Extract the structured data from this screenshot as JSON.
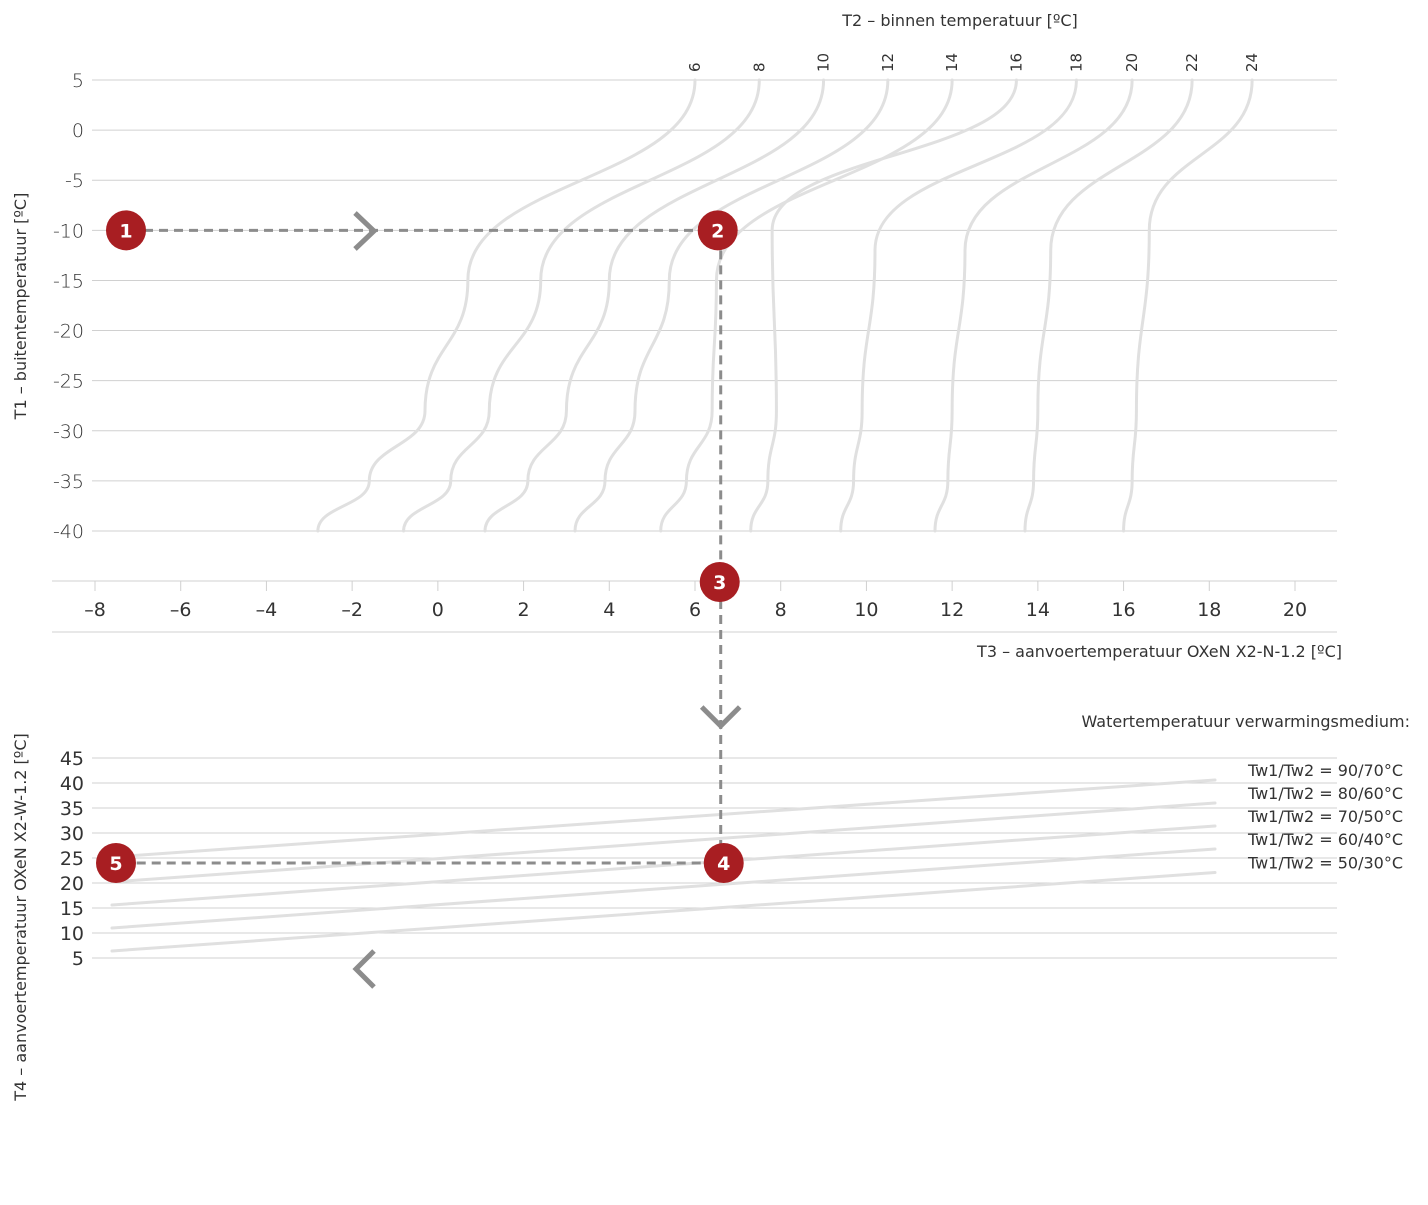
{
  "chart_data": [
    {
      "type": "line",
      "title": "",
      "top_axis_label": "T2 – binnen temperatuur [ºC]",
      "ylabel": "T1 – buitentemperatuur  [ºC]",
      "xlabel": "T3 – aanvoertemperatuur OXeN X2-N-1.2 [ºC]",
      "yticks": [
        "5",
        "0",
        "-5",
        "-10",
        "-15",
        "-20",
        "-25",
        "-30",
        "-35",
        "-40"
      ],
      "ylim": [
        -40,
        5
      ],
      "xticks": [
        "–8",
        "–6",
        "–4",
        "–2",
        "0",
        "2",
        "4",
        "6",
        "8",
        "10",
        "12",
        "14",
        "16",
        "18",
        "20"
      ],
      "xlim": [
        -8,
        20
      ],
      "series": [
        {
          "name": "6",
          "points": [
            [
              -2.8,
              -40
            ],
            [
              -1.6,
              -35
            ],
            [
              -0.3,
              -28
            ],
            [
              0.7,
              -15
            ],
            [
              6,
              5
            ]
          ]
        },
        {
          "name": "8",
          "points": [
            [
              -0.8,
              -40
            ],
            [
              0.3,
              -35
            ],
            [
              1.2,
              -28
            ],
            [
              2.4,
              -15
            ],
            [
              7.5,
              5
            ]
          ]
        },
        {
          "name": "10",
          "points": [
            [
              1.1,
              -40
            ],
            [
              2.1,
              -35
            ],
            [
              3.0,
              -28
            ],
            [
              4.0,
              -15
            ],
            [
              9.0,
              5
            ]
          ]
        },
        {
          "name": "12",
          "points": [
            [
              3.2,
              -40
            ],
            [
              3.9,
              -35
            ],
            [
              4.6,
              -28
            ],
            [
              5.4,
              -15
            ],
            [
              10.5,
              5
            ]
          ]
        },
        {
          "name": "14",
          "points": [
            [
              5.2,
              -40
            ],
            [
              5.8,
              -35
            ],
            [
              6.4,
              -28
            ],
            [
              6.5,
              -15
            ],
            [
              12.0,
              5
            ]
          ]
        },
        {
          "name": "16",
          "points": [
            [
              7.3,
              -40
            ],
            [
              7.7,
              -35
            ],
            [
              7.9,
              -28
            ],
            [
              7.8,
              -10
            ],
            [
              13.5,
              5
            ]
          ]
        },
        {
          "name": "18",
          "points": [
            [
              9.4,
              -40
            ],
            [
              9.7,
              -35
            ],
            [
              9.9,
              -28
            ],
            [
              10.2,
              -12
            ],
            [
              14.9,
              5
            ]
          ]
        },
        {
          "name": "20",
          "points": [
            [
              11.6,
              -40
            ],
            [
              11.9,
              -35
            ],
            [
              12.0,
              -28
            ],
            [
              12.3,
              -12
            ],
            [
              16.2,
              5
            ]
          ]
        },
        {
          "name": "22",
          "points": [
            [
              13.7,
              -40
            ],
            [
              13.9,
              -35
            ],
            [
              14.0,
              -28
            ],
            [
              14.3,
              -12
            ],
            [
              17.6,
              5
            ]
          ]
        },
        {
          "name": "24",
          "points": [
            [
              16.0,
              -40
            ],
            [
              16.2,
              -35
            ],
            [
              16.3,
              -28
            ],
            [
              16.6,
              -10
            ],
            [
              19.0,
              5
            ]
          ]
        }
      ]
    },
    {
      "type": "line",
      "title": "",
      "ylabel": "T4 – aanvoertemperatuur OXeN X2-W-1.2 [ºC]",
      "yticks": [
        "45",
        "40",
        "35",
        "30",
        "25",
        "20",
        "15",
        "10",
        "5"
      ],
      "ylim": [
        5,
        45
      ],
      "xlim": [
        -8,
        20
      ],
      "legend_title": "Watertemperatuur verwarmingsmedium:",
      "series": [
        {
          "name": "Tw1/Tw2 = 90/70°C",
          "x": [
            -8,
            18
          ],
          "y": [
            25.2,
            40.6
          ]
        },
        {
          "name": "Tw1/Tw2 = 80/60°C",
          "x": [
            -8,
            18
          ],
          "y": [
            20.2,
            36.0
          ]
        },
        {
          "name": "Tw1/Tw2 = 70/50°C",
          "x": [
            -8,
            18
          ],
          "y": [
            15.6,
            31.4
          ]
        },
        {
          "name": "Tw1/Tw2 = 60/40°C",
          "x": [
            -8,
            18
          ],
          "y": [
            11.0,
            26.8
          ]
        },
        {
          "name": "Tw1/Tw2 = 50/30°C",
          "x": [
            -8,
            18
          ],
          "y": [
            6.4,
            22.1
          ]
        }
      ]
    }
  ],
  "example_path": {
    "markers": [
      "1",
      "2",
      "3",
      "4",
      "5"
    ],
    "t1": -10,
    "t3": 6.6,
    "t4": 24
  },
  "colors": {
    "curve": "#e0e0e0",
    "grid": "#d0d0d0",
    "dash": "#8c8c8c",
    "marker": "#a81e22",
    "text": "#333333"
  }
}
